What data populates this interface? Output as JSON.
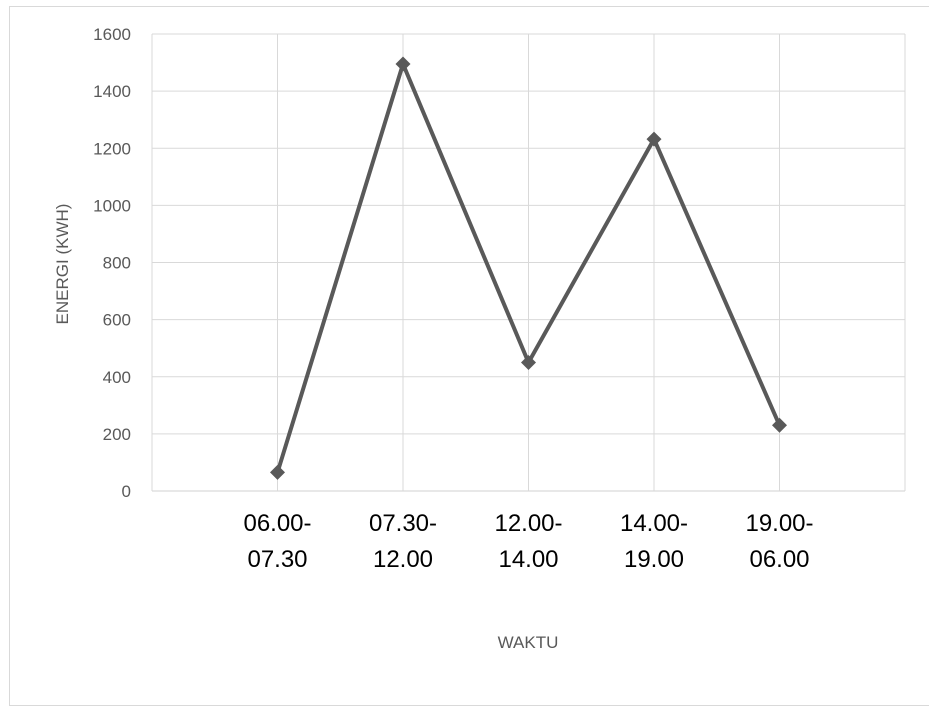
{
  "chart_data": {
    "type": "line",
    "title": "",
    "xlabel": "WAKTU",
    "ylabel": "ENERGI (KWH)",
    "categories": [
      [
        "06.00-",
        "07.30"
      ],
      [
        "07.30-",
        "12.00"
      ],
      [
        "12.00-",
        "14.00"
      ],
      [
        "14.00-",
        "19.00"
      ],
      [
        "19.00-",
        "06.00"
      ]
    ],
    "series": [
      {
        "values": [
          65,
          1495,
          450,
          1232,
          230
        ]
      }
    ],
    "ylim": [
      0,
      1600
    ],
    "yticks": [
      0,
      200,
      400,
      600,
      800,
      1000,
      1200,
      1400,
      1600
    ],
    "grid": true,
    "marker": "diamond",
    "colors": {
      "line": "#595959",
      "grid": "#d9d9d9",
      "axis": "#d9d9d9"
    }
  }
}
